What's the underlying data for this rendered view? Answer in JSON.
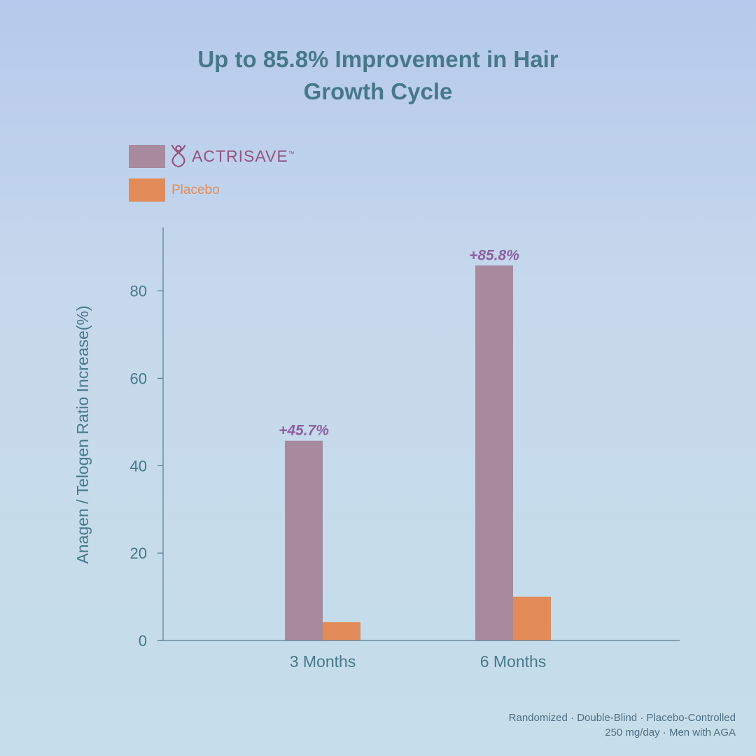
{
  "title": {
    "line1": "Up to 85.8% Improvement in Hair",
    "line2": "Growth Cycle"
  },
  "legend": {
    "brand_label": "ACTRISAVE",
    "brand_trademark": "™",
    "placebo_label": "Placebo"
  },
  "footer": {
    "line1": "Randomized · Double-Blind · Placebo-Controlled",
    "line2": "250 mg/day · Men with AGA"
  },
  "colors": {
    "actrisave": "#a88a9f",
    "placebo": "#e28b58",
    "axis": "#5a7b90",
    "text": "#47788a",
    "annotation": "#8d5fa0"
  },
  "chart_data": {
    "type": "bar",
    "title": "Up to 85.8% Improvement in Hair Growth Cycle",
    "xlabel": "",
    "ylabel": "Anagen / Telogen Ratio Increase(%)",
    "categories": [
      "3 Months",
      "6 Months"
    ],
    "series": [
      {
        "name": "ACTRISAVE",
        "values": [
          45.7,
          85.8
        ]
      },
      {
        "name": "Placebo",
        "values": [
          4.2,
          10.0
        ]
      }
    ],
    "annotations": [
      "+45.7%",
      "+85.8%"
    ],
    "yticks": [
      0,
      20,
      40,
      60,
      80
    ],
    "ylim": [
      0,
      94.5
    ],
    "legend": "top-left",
    "grid": false
  }
}
